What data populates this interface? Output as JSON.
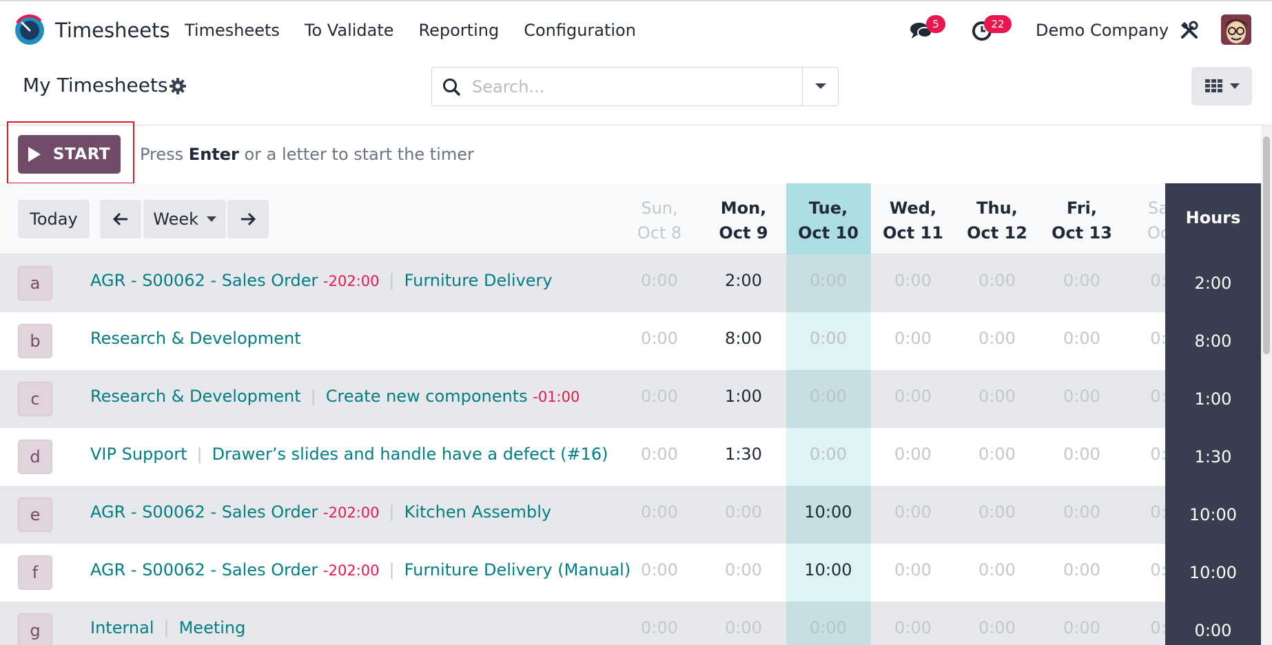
{
  "navbar": {
    "app_name": "Timesheets",
    "menu": [
      "Timesheets",
      "To Validate",
      "Reporting",
      "Configuration"
    ],
    "messages_badge": "5",
    "activities_badge": "22",
    "company": "Demo Company"
  },
  "control": {
    "title": "My Timesheets",
    "search_placeholder": "Search..."
  },
  "timer": {
    "start_label": "START",
    "hint_pre": "Press ",
    "hint_key": "Enter",
    "hint_post": " or a letter to start the timer"
  },
  "grid": {
    "today_label": "Today",
    "range_label": "Week",
    "days": [
      {
        "l1": "Sun,",
        "l2": "Oct 8"
      },
      {
        "l1": "Mon,",
        "l2": "Oct 9"
      },
      {
        "l1": "Tue,",
        "l2": "Oct 10"
      },
      {
        "l1": "Wed,",
        "l2": "Oct 11"
      },
      {
        "l1": "Thu,",
        "l2": "Oct 12"
      },
      {
        "l1": "Fri,",
        "l2": "Oct 13"
      },
      {
        "l1": "Sa",
        "l2": "Oc"
      }
    ],
    "hours_label": "Hours",
    "rows": [
      {
        "key": "a",
        "project": "AGR - S00062 - Sales Order",
        "overtime": "-202:00",
        "task": "Furniture Delivery",
        "cells": [
          "0:00",
          "2:00",
          "0:00",
          "0:00",
          "0:00",
          "0:00",
          "0:"
        ],
        "total": "2:00"
      },
      {
        "key": "b",
        "project": "Research & Development",
        "overtime": "",
        "task": "",
        "cells": [
          "0:00",
          "8:00",
          "0:00",
          "0:00",
          "0:00",
          "0:00",
          "0:"
        ],
        "total": "8:00"
      },
      {
        "key": "c",
        "project": "Research & Development",
        "overtime": "",
        "task": "Create new components",
        "task_overtime": "-01:00",
        "cells": [
          "0:00",
          "1:00",
          "0:00",
          "0:00",
          "0:00",
          "0:00",
          "0:"
        ],
        "total": "1:00"
      },
      {
        "key": "d",
        "project": "VIP Support",
        "overtime": "",
        "task": "Drawer’s slides and handle have a defect (#16)",
        "cells": [
          "0:00",
          "1:30",
          "0:00",
          "0:00",
          "0:00",
          "0:00",
          "0:"
        ],
        "total": "1:30"
      },
      {
        "key": "e",
        "project": "AGR - S00062 - Sales Order",
        "overtime": "-202:00",
        "task": "Kitchen Assembly",
        "cells": [
          "0:00",
          "0:00",
          "10:00",
          "0:00",
          "0:00",
          "0:00",
          "0:"
        ],
        "total": "10:00"
      },
      {
        "key": "f",
        "project": "AGR - S00062 - Sales Order",
        "overtime": "-202:00",
        "task": "Furniture Delivery (Manual)",
        "cells": [
          "0:00",
          "0:00",
          "10:00",
          "0:00",
          "0:00",
          "0:00",
          "0:"
        ],
        "total": "10:00"
      },
      {
        "key": "g",
        "project": "Internal",
        "overtime": "",
        "task": "Meeting",
        "cells": [
          "0:00",
          "0:00",
          "0:00",
          "0:00",
          "0:00",
          "0:00",
          "0:"
        ],
        "total": "0:00"
      }
    ]
  },
  "colors": {
    "brand": "#714b67",
    "link": "#017e84",
    "danger": "#e8174d",
    "today_column": "#dff3f5",
    "hours_column": "#383d4f"
  }
}
